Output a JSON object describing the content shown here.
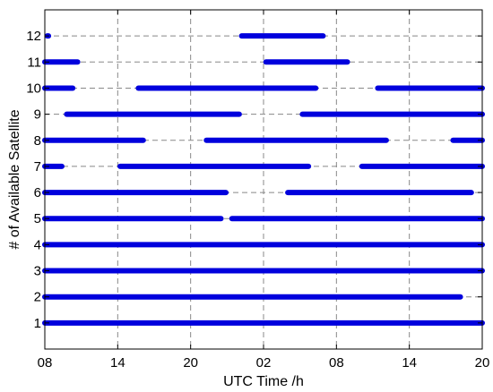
{
  "chart_data": {
    "type": "bar",
    "xlabel": "UTC Time /h",
    "ylabel": "# of Available Satellite",
    "x_tick_labels": [
      "08",
      "14",
      "20",
      "02",
      "08",
      "14",
      "20"
    ],
    "x_tick_hours": [
      0,
      6,
      12,
      18,
      24,
      30,
      36
    ],
    "xlim_hours": [
      0,
      36
    ],
    "y_ticks": [
      1,
      2,
      3,
      4,
      5,
      6,
      7,
      8,
      9,
      10,
      11,
      12
    ],
    "ylim": [
      0,
      13
    ],
    "grid": true,
    "grid_style": "dashed",
    "colors": {
      "bar": "#0000dd",
      "grid": "#888888",
      "axis": "#000000"
    },
    "series": [
      {
        "satellite": 1,
        "intervals_hours": [
          [
            0,
            36
          ]
        ]
      },
      {
        "satellite": 2,
        "intervals_hours": [
          [
            0,
            34.2
          ]
        ]
      },
      {
        "satellite": 3,
        "intervals_hours": [
          [
            0,
            36
          ]
        ]
      },
      {
        "satellite": 4,
        "intervals_hours": [
          [
            0,
            36
          ]
        ]
      },
      {
        "satellite": 5,
        "intervals_hours": [
          [
            0,
            14.5
          ],
          [
            15.4,
            36
          ]
        ]
      },
      {
        "satellite": 6,
        "intervals_hours": [
          [
            0,
            14.9
          ],
          [
            20,
            35.1
          ]
        ]
      },
      {
        "satellite": 7,
        "intervals_hours": [
          [
            0,
            1.4
          ],
          [
            6.2,
            21.7
          ],
          [
            26.1,
            36
          ]
        ]
      },
      {
        "satellite": 8,
        "intervals_hours": [
          [
            0,
            8.1
          ],
          [
            13.3,
            28.1
          ],
          [
            33.6,
            36
          ]
        ]
      },
      {
        "satellite": 9,
        "intervals_hours": [
          [
            1.8,
            16
          ],
          [
            21.2,
            36
          ]
        ]
      },
      {
        "satellite": 10,
        "intervals_hours": [
          [
            0,
            2.3
          ],
          [
            7.7,
            22.3
          ],
          [
            27.4,
            36
          ]
        ]
      },
      {
        "satellite": 11,
        "intervals_hours": [
          [
            0,
            2.7
          ],
          [
            18.2,
            24.9
          ]
        ]
      },
      {
        "satellite": 12,
        "intervals_hours": [
          [
            0.2,
            0.3
          ],
          [
            16.2,
            22.9
          ]
        ]
      }
    ]
  }
}
